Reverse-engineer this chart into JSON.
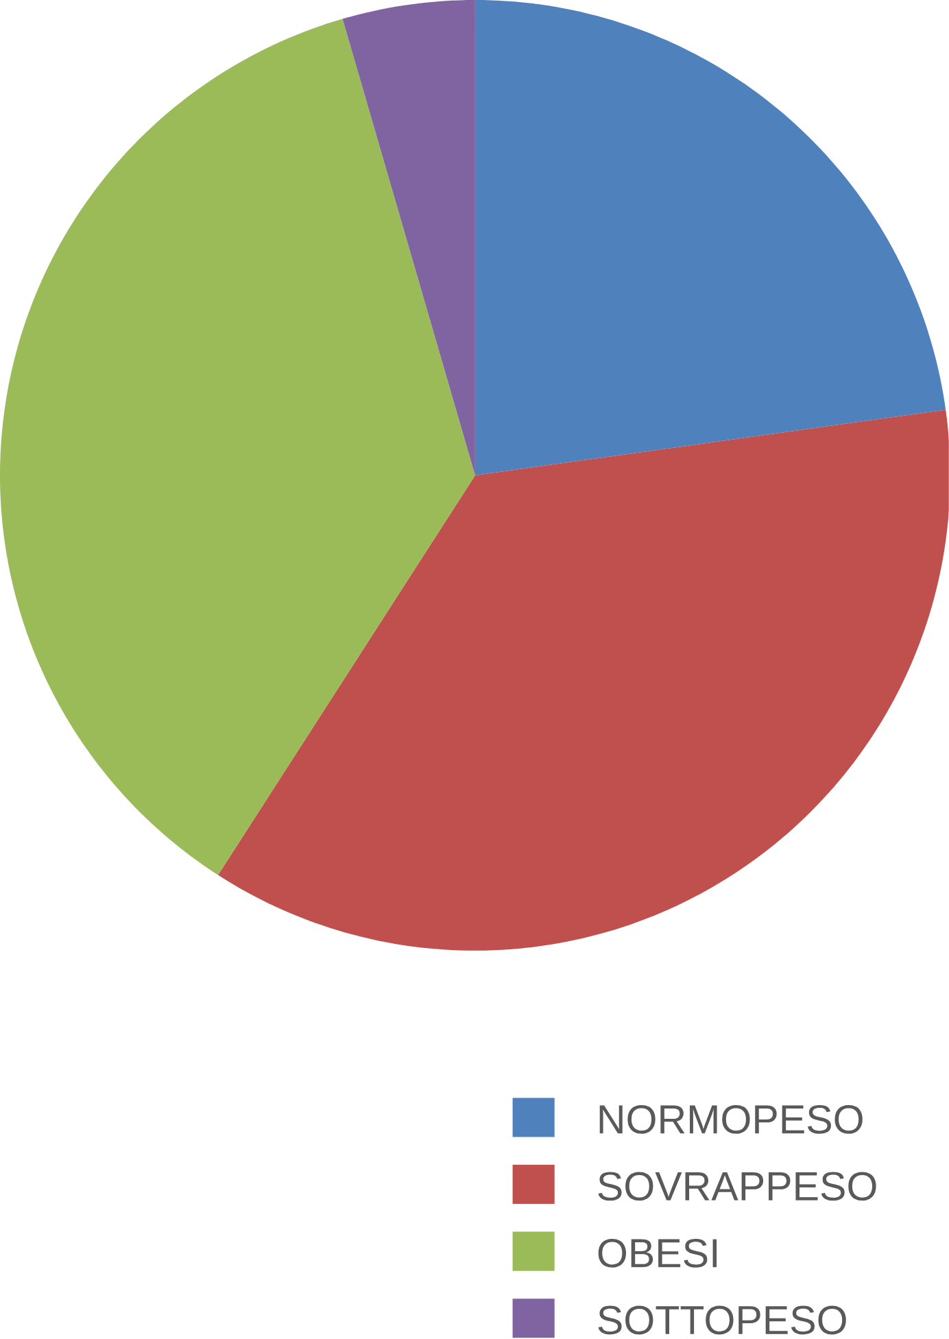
{
  "chart_data": {
    "type": "pie",
    "categories": [
      "NORMOPESO",
      "SOVRAPPESO",
      "OBESI",
      "SOTTOPESO"
    ],
    "values": [
      22.8,
      36.3,
      36.4,
      4.5
    ],
    "colors": [
      "#4f81bd",
      "#c0504d",
      "#9bbb59",
      "#8064a2"
    ],
    "legend": "bottom right"
  }
}
